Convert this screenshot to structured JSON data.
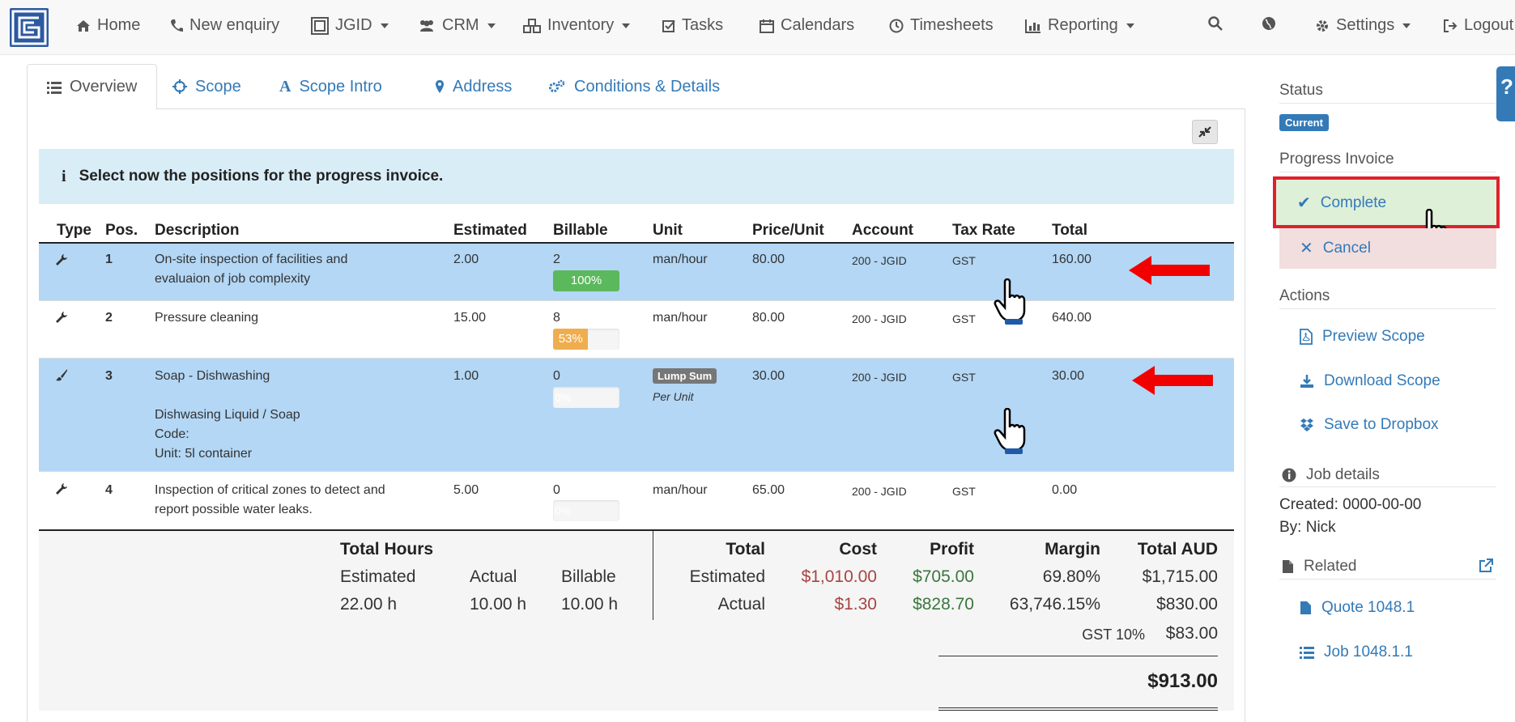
{
  "nav": {
    "items": [
      {
        "label": "Home",
        "icon": "home-icon"
      },
      {
        "label": "New enquiry",
        "icon": "phone-icon"
      },
      {
        "label": "JGID",
        "icon": "jgid-icon"
      },
      {
        "label": "CRM",
        "icon": "users-icon"
      },
      {
        "label": "Inventory",
        "icon": "cubes-icon"
      },
      {
        "label": "Tasks",
        "icon": "check-square-icon"
      },
      {
        "label": "Calendars",
        "icon": "calendar-icon"
      },
      {
        "label": "Timesheets",
        "icon": "clock-icon"
      },
      {
        "label": "Reporting",
        "icon": "bar-chart-icon"
      },
      {
        "label": "Settings",
        "icon": "gear-icon"
      },
      {
        "label": "Logout",
        "icon": "logout-icon"
      }
    ]
  },
  "tabs": [
    {
      "label": "Overview",
      "icon": "list-icon"
    },
    {
      "label": "Scope",
      "icon": "crosshairs-icon"
    },
    {
      "label": "Scope Intro",
      "icon": "font-icon"
    },
    {
      "label": "Address",
      "icon": "map-marker-icon"
    },
    {
      "label": "Conditions & Details",
      "icon": "cogs-icon"
    }
  ],
  "info": {
    "message": "Select now the positions for the progress invoice."
  },
  "table": {
    "headers": [
      "Type",
      "Pos.",
      "Description",
      "Estimated",
      "Billable",
      "Unit",
      "Price/Unit",
      "Account",
      "Tax Rate",
      "Total"
    ],
    "rows": [
      {
        "pos": "1",
        "desc1": "On-site inspection of facilities and",
        "desc2": "evaluaion of job complexity",
        "estimated": "2.00",
        "billable": "2",
        "percent_text": "100%",
        "percent": 100,
        "bar_color": "#5cb85c",
        "unit": "man/hour",
        "price": "80.00",
        "account": "200 - JGID",
        "tax": "GST",
        "total": "160.00"
      },
      {
        "pos": "2",
        "desc1": "Pressure cleaning",
        "estimated": "15.00",
        "billable": "8",
        "percent_text": "53%",
        "percent": 53,
        "bar_color": "#f0ad4e",
        "unit": "man/hour",
        "price": "80.00",
        "account": "200 - JGID",
        "tax": "GST",
        "total": "640.00"
      },
      {
        "pos": "3",
        "desc1": "Soap - Dishwashing",
        "desc3": "Dishwasing Liquid / Soap",
        "desc4": "Code:",
        "desc5": "Unit: 5l container",
        "estimated": "1.00",
        "billable": "0",
        "percent_text": "0%",
        "percent": 0,
        "unit_label": "Lump Sum",
        "unit_sub": "Per Unit",
        "price": "30.00",
        "account": "200 - JGID",
        "tax": "GST",
        "total": "30.00"
      },
      {
        "pos": "4",
        "desc1": "Inspection of critical zones to detect and",
        "desc2": "report possible water leaks.",
        "estimated": "5.00",
        "billable": "0",
        "percent_text": "0%",
        "percent": 0,
        "unit": "man/hour",
        "price": "65.00",
        "account": "200 - JGID",
        "tax": "GST",
        "total": "0.00"
      }
    ]
  },
  "totals": {
    "hours_title": "Total Hours",
    "hours_headers": [
      "Estimated",
      "Actual",
      "Billable"
    ],
    "hours_values": [
      "22.00 h",
      "10.00 h",
      "10.00 h"
    ],
    "fin_headers": [
      "Total",
      "Cost",
      "Profit",
      "Margin",
      "Total AUD"
    ],
    "estimated": {
      "label": "Estimated",
      "cost": "$1,010.00",
      "profit": "$705.00",
      "margin": "69.80%",
      "total": "$1,715.00"
    },
    "actual": {
      "label": "Actual",
      "cost": "$1.30",
      "profit": "$828.70",
      "margin": "63,746.15%",
      "total": "$830.00"
    },
    "gst_label": "GST 10%",
    "gst_value": "$83.00",
    "grand_total": "$913.00"
  },
  "sidebar": {
    "status_title": "Status",
    "status_badge": "Current",
    "progress_title": "Progress Invoice",
    "complete_label": "Complete",
    "cancel_label": "Cancel",
    "actions_title": "Actions",
    "actions": [
      "Preview Scope",
      "Download Scope",
      "Save to Dropbox"
    ],
    "job_details_title": "Job details",
    "created": "Created: 0000-00-00",
    "by": "By: Nick",
    "related_title": "Related",
    "related": [
      "Quote 1048.1",
      "Job 1048.1.1"
    ]
  },
  "colors": {
    "primary": "#337ab7",
    "success_bg": "#dff0d8",
    "danger_bg": "#f2dede",
    "row_selected": "#b3d7f5",
    "annotation_red": "#e0202d"
  }
}
